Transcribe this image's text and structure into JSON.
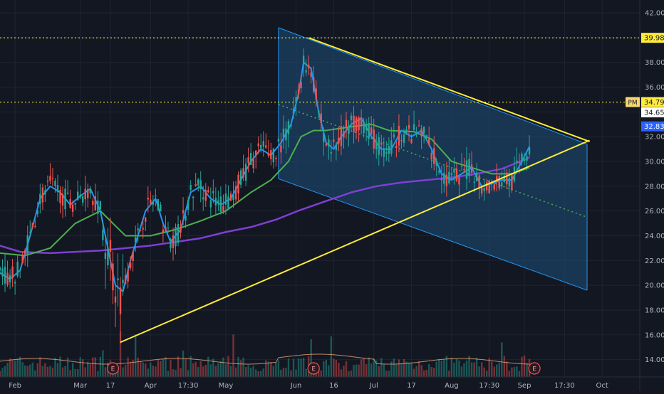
{
  "colors": {
    "background": "#131722",
    "grid": "#1f2433",
    "axis_text": "#b2b5be",
    "candle_up": "#26a69a",
    "candle_down": "#ef5350",
    "ma_fast": "#2196f3",
    "ma_mid": "#4caf50",
    "ma_slow": "#7e3fd3",
    "trendline": "#ffeb3b",
    "channel_fill": "#1e4f7a",
    "channel_line": "#2196f3",
    "volume_ma": "#e8a87c"
  },
  "chart_data": {
    "type": "candlestick",
    "y_axis": {
      "position": "right",
      "range": [
        12.6,
        42.0
      ],
      "ticks": [
        "42.00",
        "40.00",
        "38.00",
        "36.00",
        "34.00",
        "32.00",
        "30.00",
        "28.00",
        "26.00",
        "24.00",
        "22.00",
        "20.00",
        "18.00",
        "16.00",
        "14.00"
      ]
    },
    "x_axis": {
      "labels": [
        {
          "label": "Feb",
          "t": 6
        },
        {
          "label": "Mar",
          "t": 32
        },
        {
          "label": "17",
          "t": 44
        },
        {
          "label": "Apr",
          "t": 60
        },
        {
          "label": "17:30",
          "t": 75
        },
        {
          "label": "May",
          "t": 90
        },
        {
          "label": "Jun",
          "t": 118
        },
        {
          "label": "16",
          "t": 133
        },
        {
          "label": "Jul",
          "t": 149
        },
        {
          "label": "17",
          "t": 164
        },
        {
          "label": "Aug",
          "t": 180
        },
        {
          "label": "17:30",
          "t": 195
        },
        {
          "label": "Sep",
          "t": 209
        },
        {
          "label": "17:30",
          "t": 225
        },
        {
          "label": "Oct",
          "t": 240
        }
      ],
      "range": [
        0,
        255
      ]
    },
    "price_labels": [
      {
        "text": "39.98",
        "value": 39.98,
        "style": "yellow",
        "dotted_line": true
      },
      {
        "text": "PM",
        "value": 34.79,
        "style": "tag"
      },
      {
        "text": "34.79",
        "value": 34.79,
        "style": "yellow",
        "dotted_line": true
      },
      {
        "text": "34.65",
        "value": 34.65,
        "style": "white"
      },
      {
        "text": "32.83",
        "value": 32.83,
        "style": "blue"
      }
    ],
    "earnings_markers": [
      {
        "label": "E",
        "t": 45
      },
      {
        "label": "E",
        "t": 125
      },
      {
        "label": "E",
        "t": 213
      }
    ],
    "trendlines": [
      {
        "name": "upper-resistance",
        "from": {
          "t": 123,
          "v": 39.98
        },
        "to": {
          "t": 235,
          "v": 31.6
        }
      },
      {
        "name": "lower-support",
        "from": {
          "t": 48,
          "v": 15.4
        },
        "to": {
          "t": 235,
          "v": 31.7
        }
      }
    ],
    "channel": {
      "upper": {
        "from": {
          "t": 111,
          "v": 40.8
        },
        "to": {
          "t": 234,
          "v": 31.4
        }
      },
      "lower": {
        "from": {
          "t": 111,
          "v": 28.6
        },
        "to": {
          "t": 234,
          "v": 19.6
        }
      },
      "mid_dotted": {
        "from": {
          "t": 111,
          "v": 34.6
        },
        "to": {
          "t": 234,
          "v": 25.5
        }
      }
    },
    "ma_fast": [
      [
        0,
        21
      ],
      [
        4,
        20.5
      ],
      [
        8,
        21.2
      ],
      [
        12,
        24
      ],
      [
        16,
        27
      ],
      [
        20,
        28
      ],
      [
        24,
        27.5
      ],
      [
        28,
        26.5
      ],
      [
        32,
        27.2
      ],
      [
        36,
        27.8
      ],
      [
        40,
        26
      ],
      [
        43,
        23
      ],
      [
        46,
        20
      ],
      [
        49,
        19.5
      ],
      [
        52,
        22
      ],
      [
        55,
        24
      ],
      [
        58,
        26
      ],
      [
        62,
        27
      ],
      [
        65,
        25
      ],
      [
        68,
        23.5
      ],
      [
        72,
        24.5
      ],
      [
        76,
        27.5
      ],
      [
        80,
        28
      ],
      [
        84,
        27
      ],
      [
        88,
        26.5
      ],
      [
        92,
        27
      ],
      [
        96,
        28.5
      ],
      [
        100,
        30
      ],
      [
        104,
        31
      ],
      [
        108,
        30.5
      ],
      [
        112,
        31.5
      ],
      [
        116,
        33
      ],
      [
        119,
        35.5
      ],
      [
        121,
        38
      ],
      [
        124,
        37.5
      ],
      [
        127,
        34
      ],
      [
        130,
        31.5
      ],
      [
        133,
        31
      ],
      [
        136,
        32
      ],
      [
        140,
        33
      ],
      [
        144,
        33.5
      ],
      [
        148,
        32
      ],
      [
        152,
        31
      ],
      [
        156,
        31
      ],
      [
        160,
        32.5
      ],
      [
        164,
        32
      ],
      [
        168,
        32.5
      ],
      [
        172,
        31
      ],
      [
        176,
        29
      ],
      [
        180,
        28.5
      ],
      [
        184,
        29
      ],
      [
        188,
        29.5
      ],
      [
        192,
        28
      ],
      [
        196,
        28.2
      ],
      [
        200,
        28.5
      ],
      [
        204,
        28.5
      ],
      [
        208,
        30
      ],
      [
        211,
        31.2
      ]
    ],
    "ma_mid": [
      [
        0,
        22.6
      ],
      [
        10,
        22.4
      ],
      [
        20,
        23
      ],
      [
        30,
        25
      ],
      [
        40,
        26
      ],
      [
        45,
        25
      ],
      [
        50,
        24
      ],
      [
        55,
        24
      ],
      [
        60,
        24
      ],
      [
        70,
        24.5
      ],
      [
        80,
        25.2
      ],
      [
        90,
        26
      ],
      [
        100,
        27.5
      ],
      [
        108,
        28.5
      ],
      [
        115,
        30
      ],
      [
        120,
        32
      ],
      [
        125,
        32.5
      ],
      [
        130,
        32.5
      ],
      [
        140,
        32.8
      ],
      [
        148,
        33
      ],
      [
        155,
        32.5
      ],
      [
        165,
        32.4
      ],
      [
        172,
        31.8
      ],
      [
        180,
        30
      ],
      [
        188,
        29.5
      ],
      [
        196,
        29
      ],
      [
        204,
        29
      ],
      [
        211,
        29.5
      ]
    ],
    "ma_slow": [
      [
        0,
        23.2
      ],
      [
        8,
        22.7
      ],
      [
        20,
        22.6
      ],
      [
        30,
        22.7
      ],
      [
        40,
        22.8
      ],
      [
        50,
        23
      ],
      [
        60,
        23.2
      ],
      [
        70,
        23.5
      ],
      [
        80,
        23.8
      ],
      [
        90,
        24.3
      ],
      [
        100,
        24.7
      ],
      [
        110,
        25.3
      ],
      [
        120,
        26.1
      ],
      [
        130,
        26.8
      ],
      [
        140,
        27.5
      ],
      [
        150,
        28
      ],
      [
        160,
        28.3
      ],
      [
        170,
        28.5
      ],
      [
        180,
        28.7
      ],
      [
        190,
        29
      ],
      [
        200,
        29.4
      ],
      [
        211,
        30.3
      ]
    ]
  }
}
